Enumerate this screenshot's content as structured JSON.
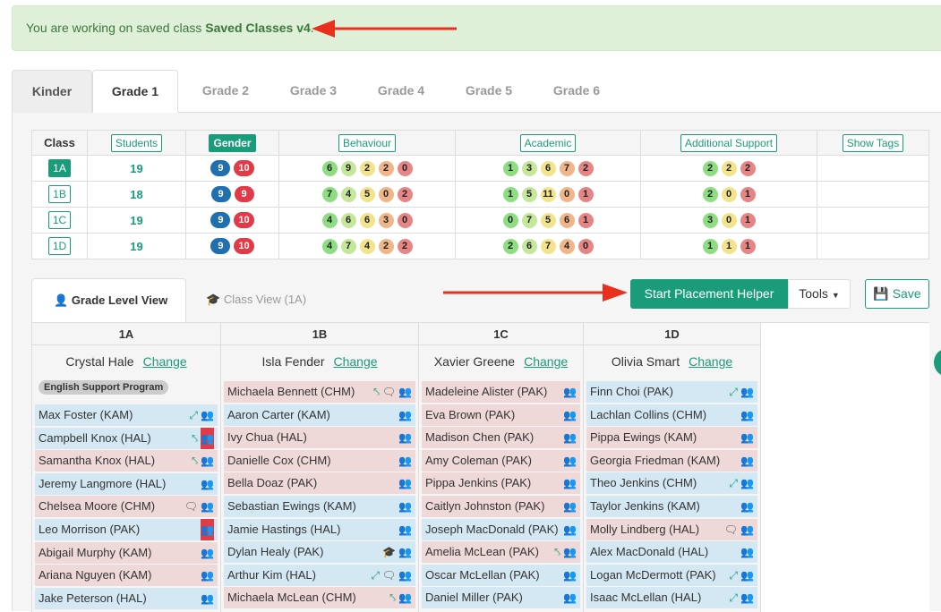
{
  "alert": {
    "prefix": "You are working on saved class ",
    "class_name": "Saved Classes v4",
    "suffix": "."
  },
  "grade_tabs": [
    "Kinder",
    "Grade 1",
    "Grade 2",
    "Grade 3",
    "Grade 4",
    "Grade 5",
    "Grade 6"
  ],
  "active_grade": "Grade 1",
  "stats": {
    "headers": {
      "class": "Class",
      "students": "Students",
      "gender": "Gender",
      "behaviour": "Behaviour",
      "academic": "Academic",
      "support": "Additional Support",
      "tags": "Show Tags"
    },
    "rows": [
      {
        "cls": "1A",
        "students": "19",
        "gender": [
          "9",
          "10"
        ],
        "behaviour": [
          "6",
          "9",
          "2",
          "2",
          "0"
        ],
        "academic": [
          "1",
          "3",
          "6",
          "7",
          "2"
        ],
        "support": [
          "2",
          "2",
          "2"
        ]
      },
      {
        "cls": "1B",
        "students": "18",
        "gender": [
          "9",
          "9"
        ],
        "behaviour": [
          "7",
          "4",
          "5",
          "0",
          "2"
        ],
        "academic": [
          "1",
          "5",
          "11",
          "0",
          "1"
        ],
        "support": [
          "2",
          "0",
          "1"
        ]
      },
      {
        "cls": "1C",
        "students": "19",
        "gender": [
          "9",
          "10"
        ],
        "behaviour": [
          "4",
          "6",
          "6",
          "3",
          "0"
        ],
        "academic": [
          "0",
          "7",
          "5",
          "6",
          "1"
        ],
        "support": [
          "3",
          "0",
          "1"
        ]
      },
      {
        "cls": "1D",
        "students": "19",
        "gender": [
          "9",
          "10"
        ],
        "behaviour": [
          "4",
          "7",
          "4",
          "2",
          "2"
        ],
        "academic": [
          "2",
          "6",
          "7",
          "4",
          "0"
        ],
        "support": [
          "1",
          "1",
          "1"
        ]
      }
    ]
  },
  "view_tabs": {
    "grade_level": "Grade Level View",
    "class_view": "Class View (1A)"
  },
  "buttons": {
    "placement": "Start Placement Helper",
    "tools": "Tools",
    "save": "Save"
  },
  "columns": [
    {
      "name": "1A",
      "teacher": "Crystal Hale",
      "change": "Change",
      "program": "English Support Program",
      "students": [
        {
          "n": "Max Foster (KAM)",
          "c": "b",
          "i": [
            "expand"
          ]
        },
        {
          "n": "Campbell Knox (HAL)",
          "c": "b",
          "i": [
            "compress"
          ],
          "red": true
        },
        {
          "n": "Samantha Knox (HAL)",
          "c": "p",
          "i": [
            "compress"
          ]
        },
        {
          "n": "Jeremy Langmore (HAL)",
          "c": "b",
          "i": []
        },
        {
          "n": "Chelsea Moore (CHM)",
          "c": "p",
          "i": [
            "chat"
          ]
        },
        {
          "n": "Leo Morrison (PAK)",
          "c": "b",
          "i": [],
          "red": true
        },
        {
          "n": "Abigail Murphy (KAM)",
          "c": "p",
          "i": []
        },
        {
          "n": "Ariana Nguyen (KAM)",
          "c": "p",
          "i": []
        },
        {
          "n": "Jake Peterson (HAL)",
          "c": "b",
          "i": []
        }
      ]
    },
    {
      "name": "1B",
      "teacher": "Isla Fender",
      "change": "Change",
      "students": [
        {
          "n": "Michaela Bennett (CHM)",
          "c": "p",
          "i": [
            "chat",
            "compress"
          ]
        },
        {
          "n": "Aaron Carter (KAM)",
          "c": "b",
          "i": []
        },
        {
          "n": "Ivy Chua (HAL)",
          "c": "p",
          "i": []
        },
        {
          "n": "Danielle Cox (CHM)",
          "c": "p",
          "i": []
        },
        {
          "n": "Bella Doaz (PAK)",
          "c": "p",
          "i": []
        },
        {
          "n": "Sebastian Ewings (KAM)",
          "c": "b",
          "i": []
        },
        {
          "n": "Jamie Hastings (HAL)",
          "c": "b",
          "i": []
        },
        {
          "n": "Dylan Healy (PAK)",
          "c": "b",
          "i": [
            "cap"
          ]
        },
        {
          "n": "Arthur Kim (HAL)",
          "c": "b",
          "i": [
            "chat",
            "expand"
          ]
        },
        {
          "n": "Michaela McLean (CHM)",
          "c": "p",
          "i": [
            "compress"
          ]
        }
      ]
    },
    {
      "name": "1C",
      "teacher": "Xavier Greene",
      "change": "Change",
      "students": [
        {
          "n": "Madeleine Alister (PAK)",
          "c": "p",
          "i": []
        },
        {
          "n": "Eva Brown (PAK)",
          "c": "p",
          "i": []
        },
        {
          "n": "Madison Chen (PAK)",
          "c": "p",
          "i": []
        },
        {
          "n": "Amy Coleman (PAK)",
          "c": "p",
          "i": []
        },
        {
          "n": "Pippa Jenkins (PAK)",
          "c": "p",
          "i": []
        },
        {
          "n": "Caitlyn Johnston (PAK)",
          "c": "p",
          "i": []
        },
        {
          "n": "Joseph MacDonald (PAK)",
          "c": "b",
          "i": []
        },
        {
          "n": "Amelia McLean (PAK)",
          "c": "p",
          "i": [
            "compress"
          ]
        },
        {
          "n": "Oscar McLellan (PAK)",
          "c": "b",
          "i": []
        },
        {
          "n": "Daniel Miller (PAK)",
          "c": "b",
          "i": []
        }
      ]
    },
    {
      "name": "1D",
      "teacher": "Olivia Smart",
      "change": "Change",
      "students": [
        {
          "n": "Finn Choi (PAK)",
          "c": "b",
          "i": [
            "expand"
          ]
        },
        {
          "n": "Lachlan Collins (CHM)",
          "c": "b",
          "i": []
        },
        {
          "n": "Pippa Ewings (KAM)",
          "c": "p",
          "i": []
        },
        {
          "n": "Georgia Friedman (KAM)",
          "c": "p",
          "i": []
        },
        {
          "n": "Theo Jenkins (CHM)",
          "c": "b",
          "i": [
            "expand"
          ]
        },
        {
          "n": "Taylor Jenkins (KAM)",
          "c": "b",
          "i": []
        },
        {
          "n": "Molly Lindberg (HAL)",
          "c": "p",
          "i": [
            "chat"
          ]
        },
        {
          "n": "Alex MacDonald (HAL)",
          "c": "b",
          "i": []
        },
        {
          "n": "Logan McDermott (PAK)",
          "c": "b",
          "i": [
            "expand"
          ]
        },
        {
          "n": "Isaac McLellan (HAL)",
          "c": "b",
          "i": [
            "expand"
          ]
        }
      ]
    }
  ]
}
